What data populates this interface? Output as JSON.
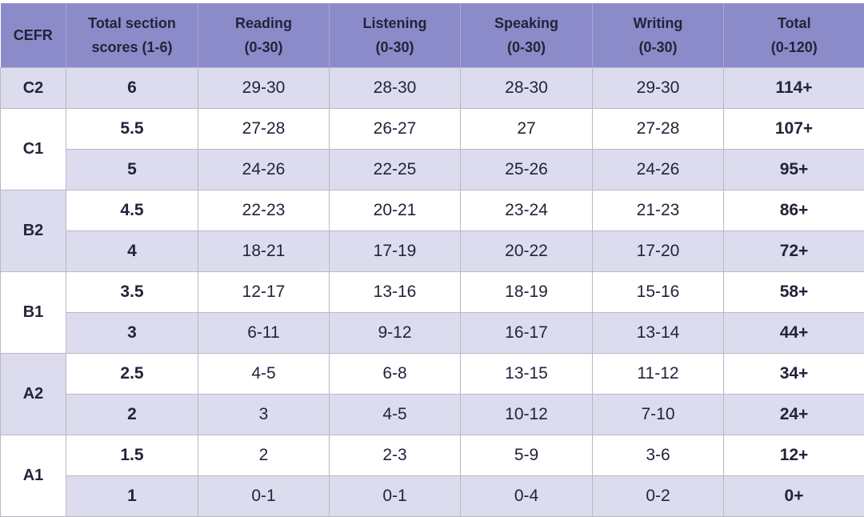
{
  "table": {
    "header": [
      [
        "CEFR"
      ],
      [
        "Total section",
        "scores (1-6)"
      ],
      [
        "Reading",
        "(0-30)"
      ],
      [
        "Listening",
        "(0-30)"
      ],
      [
        "Speaking",
        "(0-30)"
      ],
      [
        "Writing",
        "(0-30)"
      ],
      [
        "Total",
        "(0-120)"
      ]
    ],
    "groups": [
      {
        "level": "C2",
        "rows": [
          [
            "6",
            "29-30",
            "28-30",
            "28-30",
            "29-30",
            "114+"
          ]
        ]
      },
      {
        "level": "C1",
        "rows": [
          [
            "5.5",
            "27-28",
            "26-27",
            "27",
            "27-28",
            "107+"
          ],
          [
            "5",
            "24-26",
            "22-25",
            "25-26",
            "24-26",
            "95+"
          ]
        ]
      },
      {
        "level": "B2",
        "rows": [
          [
            "4.5",
            "22-23",
            "20-21",
            "23-24",
            "21-23",
            "86+"
          ],
          [
            "4",
            "18-21",
            "17-19",
            "20-22",
            "17-20",
            "72+"
          ]
        ]
      },
      {
        "level": "B1",
        "rows": [
          [
            "3.5",
            "12-17",
            "13-16",
            "18-19",
            "15-16",
            "58+"
          ],
          [
            "3",
            "6-11",
            "9-12",
            "16-17",
            "13-14",
            "44+"
          ]
        ]
      },
      {
        "level": "A2",
        "rows": [
          [
            "2.5",
            "4-5",
            "6-8",
            "13-15",
            "11-12",
            "34+"
          ],
          [
            "2",
            "3",
            "4-5",
            "10-12",
            "7-10",
            "24+"
          ]
        ]
      },
      {
        "level": "A1",
        "rows": [
          [
            "1.5",
            "2",
            "2-3",
            "5-9",
            "3-6",
            "12+"
          ],
          [
            "1",
            "0-1",
            "0-1",
            "0-4",
            "0-2",
            "0+"
          ]
        ]
      }
    ]
  }
}
